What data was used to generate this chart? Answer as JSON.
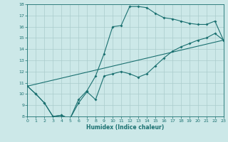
{
  "xlabel": "Humidex (Indice chaleur)",
  "xlim": [
    0,
    23
  ],
  "ylim": [
    8,
    18
  ],
  "xticks": [
    0,
    1,
    2,
    3,
    4,
    5,
    6,
    7,
    8,
    9,
    10,
    11,
    12,
    13,
    14,
    15,
    16,
    17,
    18,
    19,
    20,
    21,
    22,
    23
  ],
  "yticks": [
    8,
    9,
    10,
    11,
    12,
    13,
    14,
    15,
    16,
    17,
    18
  ],
  "background_color": "#cce8e8",
  "grid_color": "#aacccc",
  "line_color": "#1a7070",
  "line1_x": [
    0,
    1,
    2,
    3,
    4,
    5,
    6,
    7,
    8,
    9,
    10,
    11,
    12,
    13,
    14,
    15,
    16,
    17,
    18,
    19,
    20,
    21,
    22,
    23
  ],
  "line1_y": [
    10.7,
    10.0,
    9.2,
    8.0,
    8.1,
    7.8,
    9.5,
    10.3,
    11.6,
    13.6,
    16.0,
    16.1,
    17.8,
    17.8,
    17.7,
    17.2,
    16.8,
    16.7,
    16.5,
    16.3,
    16.2,
    16.2,
    16.5,
    14.8
  ],
  "line2_x": [
    0,
    1,
    2,
    3,
    4,
    5,
    6,
    7,
    8,
    9,
    10,
    11,
    12,
    13,
    14,
    15,
    16,
    17,
    18,
    19,
    20,
    21,
    22,
    23
  ],
  "line2_y": [
    10.7,
    10.0,
    9.2,
    8.0,
    8.1,
    7.8,
    9.2,
    10.2,
    9.5,
    11.6,
    11.8,
    12.0,
    11.8,
    11.5,
    11.8,
    12.5,
    13.2,
    13.8,
    14.2,
    14.5,
    14.8,
    15.0,
    15.4,
    14.8
  ],
  "line3_x": [
    0,
    23
  ],
  "line3_y": [
    10.7,
    14.8
  ]
}
